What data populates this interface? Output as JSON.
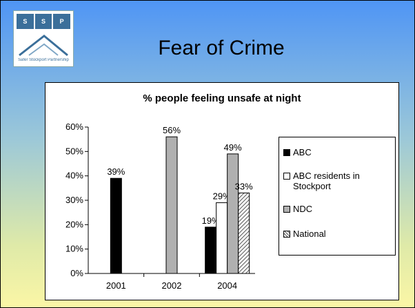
{
  "slide": {
    "title": "Fear of Crime",
    "logo": {
      "letters": [
        "S",
        "S",
        "P"
      ],
      "caption": "Safer Stockport Partnership"
    }
  },
  "colors": {
    "ABC": "#000000",
    "ABC residents in Stockport": "#ffffff",
    "NDC": "#b0b0b0",
    "National": "hatched"
  },
  "chart_data": {
    "type": "bar",
    "title": "% people feeling unsafe at night",
    "categories": [
      "2001",
      "2002",
      "2004"
    ],
    "ylim": [
      0,
      60
    ],
    "yticks": [
      "0%",
      "10%",
      "20%",
      "30%",
      "40%",
      "50%",
      "60%"
    ],
    "xlabel": "",
    "ylabel": "",
    "legend_position": "right",
    "grid": false,
    "series": [
      {
        "name": "ABC",
        "values": [
          39,
          null,
          19
        ],
        "labels": [
          "39%",
          "",
          "19%"
        ]
      },
      {
        "name": "ABC residents in Stockport",
        "values": [
          null,
          null,
          29
        ],
        "labels": [
          "",
          "",
          "29%"
        ]
      },
      {
        "name": "NDC",
        "values": [
          null,
          56,
          49
        ],
        "labels": [
          "",
          "56%",
          "49%"
        ]
      },
      {
        "name": "National",
        "values": [
          null,
          null,
          33
        ],
        "labels": [
          "",
          "",
          "33%"
        ]
      }
    ]
  }
}
